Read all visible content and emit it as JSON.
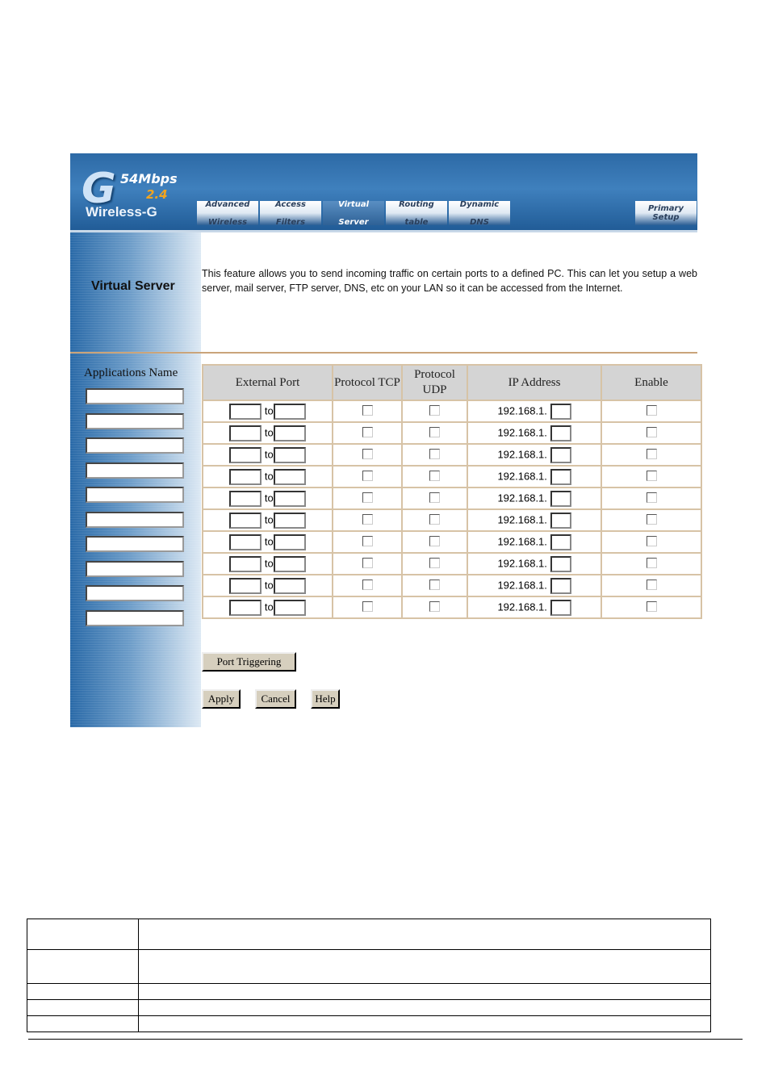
{
  "logo": {
    "brand_g": "G",
    "speed": "54Mbps",
    "band": "2.4",
    "product": "Wireless-G"
  },
  "nav": {
    "tabs": [
      {
        "line1": "Advanced",
        "line2": "Wireless"
      },
      {
        "line1": "Access",
        "line2": "Filters"
      },
      {
        "line1": "Virtual",
        "line2": "Server",
        "active": true
      },
      {
        "line1": "Routing",
        "line2": "table"
      },
      {
        "line1": "Dynamic",
        "line2": "DNS"
      }
    ],
    "primary": {
      "line1": "Primary",
      "line2": "Setup"
    }
  },
  "page_title": "Virtual Server",
  "description": "This feature allows you to send incoming traffic on certain ports to a defined PC. This can let you setup a web server, mail server, FTP server, DNS, etc on your LAN so it can be accessed from the Internet.",
  "apps_label": "Applications Name",
  "table": {
    "headers": [
      "External Port",
      "Protocol TCP",
      "Protocol UDP",
      "IP Address",
      "Enable"
    ],
    "to_label": "to",
    "ip_prefix": "192.168.1.",
    "row_count": 10
  },
  "buttons": {
    "port_triggering": "Port Triggering",
    "apply": "Apply",
    "cancel": "Cancel",
    "help": "Help"
  }
}
